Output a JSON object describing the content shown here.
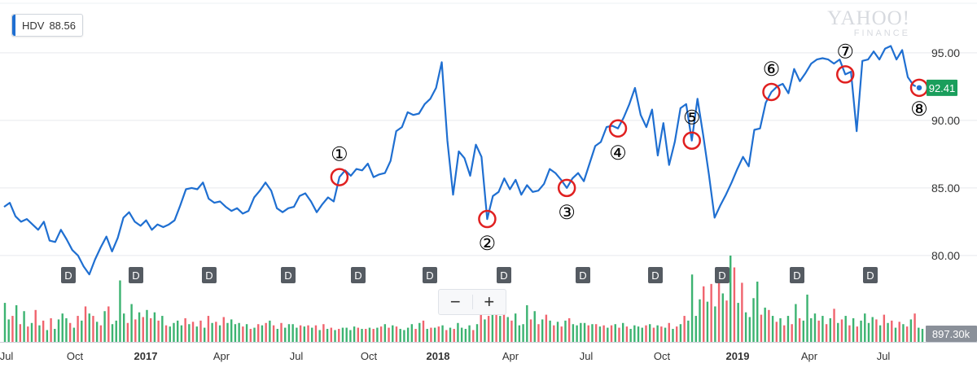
{
  "legend": {
    "symbol": "HDV",
    "value": "88.56",
    "color": "#1f6fd1"
  },
  "logo": {
    "line1": "YAHOO!",
    "line2": "FINANCE"
  },
  "zoom": {
    "minus": "−",
    "plus": "+"
  },
  "last_price_label": "92.41",
  "volume_label": "897.30k",
  "colors": {
    "line": "#1f6fd1",
    "up": "#3cb371",
    "down": "#f0646e",
    "marker": "#e02020",
    "price_tag": "#1a9e5c",
    "d_badge": "#555b62"
  },
  "chart_data": {
    "type": "line",
    "series": [
      {
        "name": "HDV",
        "values": [
          83.6,
          83.9,
          82.9,
          82.5,
          82.7,
          82.3,
          81.9,
          82.5,
          81.1,
          81.0,
          81.9,
          81.2,
          80.4,
          80.0,
          79.2,
          78.6,
          79.7,
          80.6,
          81.4,
          80.3,
          81.3,
          82.8,
          83.2,
          82.5,
          82.2,
          82.6,
          81.9,
          82.3,
          82.1,
          82.3,
          82.6,
          83.7,
          84.9,
          85.0,
          84.9,
          85.4,
          84.2,
          83.9,
          84.0,
          83.6,
          83.3,
          83.5,
          83.1,
          83.3,
          84.3,
          84.8,
          85.4,
          84.8,
          83.5,
          83.2,
          83.5,
          83.6,
          84.4,
          84.6,
          84.0,
          83.2,
          83.8,
          84.3,
          84.0,
          85.8,
          86.3,
          85.9,
          86.4,
          86.3,
          86.8,
          85.8,
          86.0,
          86.1,
          87.0,
          89.2,
          89.5,
          90.6,
          90.4,
          90.5,
          91.2,
          91.6,
          92.4,
          94.3,
          88.5,
          84.5,
          87.7,
          87.2,
          85.9,
          88.2,
          87.3,
          82.7,
          84.4,
          84.7,
          85.7,
          84.9,
          85.6,
          84.5,
          85.2,
          84.7,
          84.8,
          85.3,
          86.4,
          86.1,
          85.6,
          85.0,
          85.7,
          86.1,
          85.5,
          86.8,
          88.1,
          88.4,
          89.5,
          89.6,
          89.4,
          90.2,
          91.2,
          92.4,
          90.4,
          89.5,
          90.8,
          87.4,
          89.8,
          86.7,
          88.4,
          90.9,
          91.2,
          88.5,
          91.6,
          88.9,
          86.0,
          82.8,
          83.7,
          84.5,
          85.4,
          86.4,
          87.3,
          86.6,
          89.3,
          89.4,
          91.3,
          92.1,
          92.5,
          92.7,
          92.0,
          93.8,
          92.9,
          93.5,
          94.2,
          94.5,
          94.6,
          94.5,
          94.2,
          94.5,
          93.4,
          93.6,
          89.2,
          94.4,
          94.5,
          95.1,
          94.5,
          95.3,
          95.5,
          94.5,
          95.2,
          93.2,
          92.6,
          92.41
        ]
      }
    ],
    "volume": [
      3.3,
      1.9,
      2.2,
      3.1,
      1.5,
      2.6,
      1.3,
      1.6,
      2.7,
      1.4,
      1.8,
      1.0,
      2.0,
      1.1,
      1.9,
      2.4,
      2.0,
      1.6,
      1.2,
      2.2,
      1.8,
      3.0,
      2.4,
      2.2,
      1.7,
      1.4,
      2.6,
      3.0,
      1.5,
      1.8,
      5.2,
      2.4,
      1.6,
      3.2,
      1.9,
      2.5,
      2.1,
      2.7,
      2.0,
      2.5,
      1.8,
      2.2,
      1.4,
      1.3,
      1.6,
      1.8,
      1.4,
      2.0,
      1.5,
      1.7,
      1.3,
      1.8,
      1.2,
      2.2,
      1.6,
      1.7,
      1.4,
      2.1,
      1.6,
      1.9,
      1.5,
      1.6,
      1.3,
      1.5,
      1.1,
      1.2,
      1.5,
      1.4,
      1.6,
      1.8,
      1.4,
      1.1,
      1.6,
      1.2,
      1.5,
      1.5,
      1.2,
      1.4,
      1.3,
      1.4,
      1.2,
      1.4,
      1.0,
      1.5,
      1.1,
      1.2,
      1.0,
      1.1,
      1.2,
      1.2,
      1.0,
      1.3,
      1.2,
      1.1,
      1.1,
      1.2,
      1.1,
      1.2,
      1.3,
      1.5,
      1.2,
      1.4,
      1.3,
      1.1,
      1.0,
      1.2,
      1.5,
      1.1,
      1.6,
      1.8,
      1.1,
      1.2,
      1.2,
      1.3,
      1.4,
      1.0,
      1.2,
      1.1,
      1.6,
      1.2,
      1.1,
      1.4,
      1.0,
      1.5,
      2.4,
      1.9,
      2.2,
      2.6,
      3.6,
      2.2,
      2.8,
      2.1,
      1.8,
      2.4,
      1.4,
      1.5,
      3.1,
      1.9,
      2.6,
      1.5,
      1.9,
      2.3,
      1.8,
      1.4,
      1.7,
      1.3,
      1.8,
      2.0,
      1.5,
      1.4,
      1.6,
      1.6,
      1.4,
      1.5,
      1.5,
      1.3,
      1.4,
      1.2,
      1.4,
      1.5,
      1.2,
      1.6,
      1.3,
      1.1,
      1.4,
      1.3,
      1.2,
      1.4,
      1.5,
      1.2,
      1.4,
      1.3,
      1.2,
      1.6,
      1.1,
      1.3,
      1.5,
      2.2,
      1.8,
      5.7,
      2.2,
      3.6,
      4.7,
      3.4,
      4.9,
      3.0,
      5.8,
      4.1,
      3.5,
      7.3,
      6.3,
      3.3,
      5.0,
      2.5,
      2.1,
      3.7,
      5.1,
      2.3,
      2.9,
      2.7,
      2.2,
      1.7,
      2.0,
      1.4,
      2.2,
      1.5,
      3.2,
      2.0,
      1.8,
      4.0,
      2.0,
      2.4,
      1.8,
      2.2,
      1.5,
      2.0,
      2.8,
      1.6,
      1.9,
      2.2,
      1.4,
      2.0,
      1.3,
      1.8,
      2.4,
      1.6,
      2.1,
      1.9,
      1.4,
      2.3,
      1.6,
      1.8,
      1.2,
      1.7,
      1.5,
      1.3,
      1.9,
      2.4,
      1.2,
      1.1
    ],
    "x_ticks": [
      "Jul",
      "Oct",
      "2017",
      "Apr",
      "Jul",
      "Oct",
      "2018",
      "Apr",
      "Jul",
      "Oct",
      "2019",
      "Apr",
      "Jul"
    ],
    "y_ticks": [
      "95.00",
      "90.00",
      "85.00",
      "80.00"
    ],
    "ylim": [
      76.5,
      98.0
    ],
    "dividend_label": "D",
    "dividend_count": 12,
    "annotations": [
      {
        "label": "①",
        "index": 59
      },
      {
        "label": "②",
        "index": 85
      },
      {
        "label": "③",
        "index": 99
      },
      {
        "label": "④",
        "index": 108
      },
      {
        "label": "⑤",
        "index": 121
      },
      {
        "label": "⑥",
        "index": 135
      },
      {
        "label": "⑦",
        "index": 148
      },
      {
        "label": "⑧",
        "index": 161
      }
    ]
  }
}
